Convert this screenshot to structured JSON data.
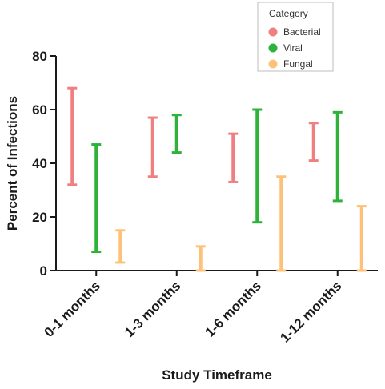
{
  "chart_data": {
    "type": "range-bar",
    "xlabel": "Study Timeframe",
    "ylabel": "Percent of Infections",
    "ylim": [
      0,
      80
    ],
    "yticks": [
      0,
      20,
      40,
      60,
      80
    ],
    "categories": [
      "0-1 months",
      "1-3 months",
      "1-6 months",
      "1-12 months"
    ],
    "legend": {
      "title": "Category",
      "position": "top-right"
    },
    "series": [
      {
        "name": "Bacterial",
        "color": "#f08080",
        "ranges": [
          [
            32,
            68
          ],
          [
            35,
            57
          ],
          [
            33,
            51
          ],
          [
            41,
            55
          ]
        ]
      },
      {
        "name": "Viral",
        "color": "#2db33a",
        "ranges": [
          [
            7,
            47
          ],
          [
            44,
            58
          ],
          [
            18,
            60
          ],
          [
            26,
            59
          ]
        ]
      },
      {
        "name": "Fungal",
        "color": "#fcc27a",
        "ranges": [
          [
            3,
            15
          ],
          [
            0,
            9
          ],
          [
            0,
            35
          ],
          [
            0,
            24
          ]
        ]
      }
    ]
  }
}
